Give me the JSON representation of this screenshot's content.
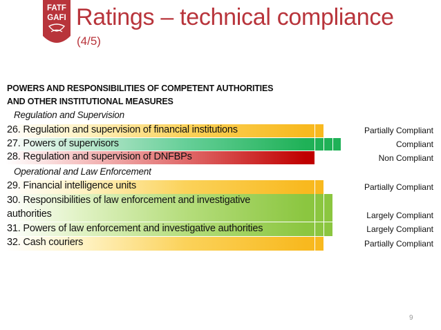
{
  "logo": {
    "line1": "FATF",
    "line2": "GAFI"
  },
  "title": "Ratings – technical compliance",
  "subtitle": "(4/5)",
  "section_heading": {
    "line1": "POWERS AND RESPONSIBILITIES OF COMPETENT AUTHORITIES",
    "line2": "AND OTHER INSTITUTIONAL MEASURES"
  },
  "subsections": {
    "regulation": "Regulation and Supervision",
    "enforcement": "Operational and Law Enforcement"
  },
  "rows": [
    {
      "label": "26. Regulation and supervision of financial institutions",
      "rating": "Partially Compliant",
      "level": "partial"
    },
    {
      "label": "27. Powers of supervisors",
      "rating": "Compliant",
      "level": "compliant"
    },
    {
      "label": "28. Regulation and supervision of DNFBPs",
      "rating": "Non Compliant",
      "level": "noncompliant"
    },
    {
      "label": "29. Financial intelligence units",
      "rating": "Partially Compliant",
      "level": "partial"
    },
    {
      "label_line1": "30. Responsibilities of law enforcement and investigative",
      "label_line2": "authorities",
      "rating": "Largely Compliant",
      "level": "largely"
    },
    {
      "label": "31. Powers of law enforcement and investigative authorities",
      "rating": "Largely Compliant",
      "level": "largely"
    },
    {
      "label": "32. Cash couriers",
      "rating": "Partially Compliant",
      "level": "partial"
    }
  ],
  "colors": {
    "title": "#b8343b",
    "partially_compliant": "#f8b91f",
    "compliant": "#1fb157",
    "non_compliant": "#c00000",
    "largely_compliant": "#8bc640"
  },
  "page_number": "9"
}
